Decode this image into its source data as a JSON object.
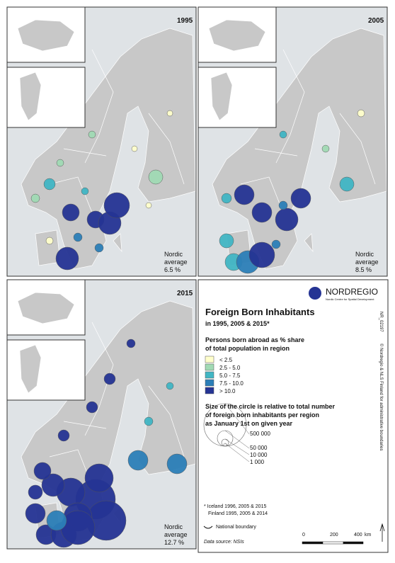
{
  "panels": [
    {
      "year": "1995",
      "average": [
        "Nordic",
        "average",
        "6.5 %"
      ]
    },
    {
      "year": "2005",
      "average": [
        "Nordic",
        "average",
        "8.5 %"
      ]
    },
    {
      "year": "2015",
      "average": [
        "Nordic",
        "average",
        "12.7 %"
      ]
    }
  ],
  "logo": {
    "name": "NORDREGIO",
    "tagline": "Nordic Centre for Spatial Development"
  },
  "map_id": "NR_02197",
  "copyright": "© Nordregio & NLS Finland for administrative boundaries",
  "legend": {
    "title": "Foreign Born Inhabitants",
    "subtitle": "in 1995, 2005 & 2015*",
    "share_heading": [
      "Persons born abroad as % share",
      "of total population in region"
    ],
    "classes": [
      {
        "label": "<  2.5",
        "color": "#ffffcc"
      },
      {
        "label": "2.5 -  5.0",
        "color": "#a1dab4"
      },
      {
        "label": "5.0 -  7.5",
        "color": "#41b6c4"
      },
      {
        "label": "7.5 - 10.0",
        "color": "#2c7fb8"
      },
      {
        "label": "> 10.0",
        "color": "#253494"
      }
    ],
    "size_heading": [
      "Size of the circle is relative to total number",
      "of foreign born inhabitants per region",
      "as January 1st on given year"
    ],
    "size_labels": [
      "500 000",
      "50 000",
      "10 000",
      "1 000"
    ],
    "footnote": [
      "* Iceland 1996, 2005 & 2015",
      "Finland 1995, 2005 & 2014"
    ],
    "boundary": "National boundary",
    "source": "Data source: NSIs",
    "scale": [
      "0",
      "200",
      "400",
      "km"
    ]
  }
}
